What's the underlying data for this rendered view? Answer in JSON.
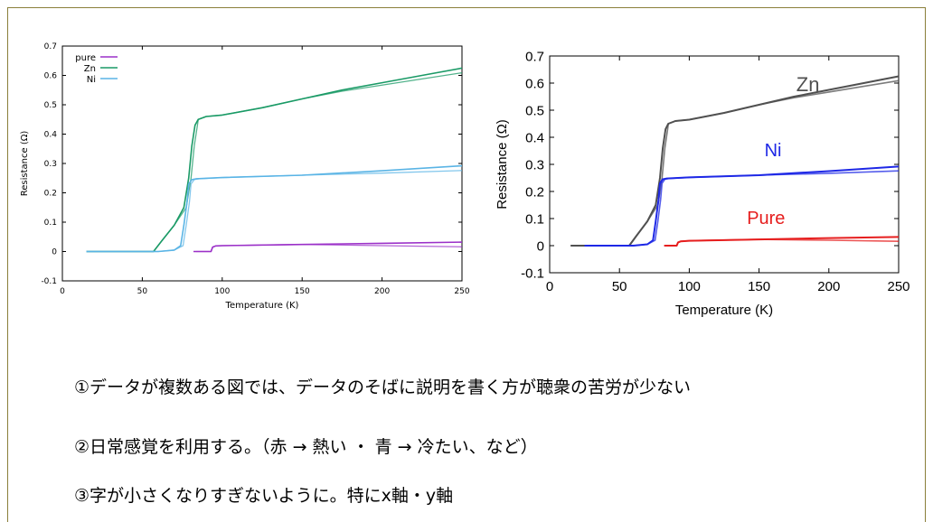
{
  "chart_data": [
    {
      "type": "line",
      "xlabel": "Temperature (K)",
      "ylabel": "Resistance (Ω)",
      "xlim": [
        0,
        250
      ],
      "ylim": [
        -0.1,
        0.7
      ],
      "xticks": [
        "0",
        "50",
        "100",
        "150",
        "200",
        "250"
      ],
      "yticks": [
        "-0.1",
        "0",
        "0.1",
        "0.2",
        "0.3",
        "0.4",
        "0.5",
        "0.6",
        "0.7"
      ],
      "legend_position": "top-left",
      "series": [
        {
          "name": "pure",
          "color": "#9b30c8",
          "x": [
            82,
            93,
            94,
            96,
            100,
            150,
            200,
            250
          ],
          "y": [
            0.0,
            0.0,
            0.015,
            0.019,
            0.02,
            0.024,
            0.028,
            0.032
          ]
        },
        {
          "name": "Zn",
          "color": "#1a9a66",
          "x": [
            15,
            57,
            62,
            70,
            76,
            79,
            81,
            83,
            85,
            90,
            100,
            125,
            150,
            175,
            200,
            225,
            250
          ],
          "y": [
            0.0,
            0.0,
            0.035,
            0.09,
            0.15,
            0.25,
            0.36,
            0.43,
            0.45,
            0.46,
            0.465,
            0.49,
            0.52,
            0.55,
            0.575,
            0.6,
            0.625
          ]
        },
        {
          "name": "Ni",
          "color": "#5ab4e5",
          "x": [
            15,
            60,
            70,
            74,
            76,
            78,
            79,
            81,
            84,
            100,
            150,
            200,
            250
          ],
          "y": [
            0.0,
            0.0,
            0.005,
            0.02,
            0.09,
            0.17,
            0.23,
            0.245,
            0.248,
            0.252,
            0.26,
            0.275,
            0.292
          ]
        }
      ]
    },
    {
      "type": "line",
      "xlabel": "Temperature (K)",
      "ylabel": "Resistance (Ω)",
      "xlim": [
        0,
        250
      ],
      "ylim": [
        -0.1,
        0.7
      ],
      "xticks": [
        "0",
        "50",
        "100",
        "150",
        "200",
        "250"
      ],
      "yticks": [
        "-0.1",
        "0",
        "0.1",
        "0.2",
        "0.3",
        "0.4",
        "0.5",
        "0.6",
        "0.7"
      ],
      "series": [
        {
          "name": "Zn",
          "color": "#505050",
          "x": [
            15,
            57,
            62,
            70,
            76,
            79,
            81,
            83,
            85,
            90,
            100,
            125,
            150,
            175,
            200,
            225,
            250
          ],
          "y": [
            0.0,
            0.0,
            0.035,
            0.09,
            0.15,
            0.25,
            0.36,
            0.43,
            0.45,
            0.46,
            0.465,
            0.49,
            0.52,
            0.55,
            0.575,
            0.6,
            0.625
          ]
        },
        {
          "name": "Ni",
          "color": "#1e28e6",
          "x": [
            25,
            60,
            70,
            74,
            76,
            78,
            79,
            81,
            84,
            100,
            150,
            200,
            250
          ],
          "y": [
            0.0,
            0.0,
            0.005,
            0.02,
            0.09,
            0.17,
            0.23,
            0.245,
            0.248,
            0.252,
            0.26,
            0.275,
            0.292
          ]
        },
        {
          "name": "Pure",
          "color": "#e61e1e",
          "x": [
            82,
            91,
            92,
            94,
            100,
            150,
            200,
            250
          ],
          "y": [
            0.0,
            0.0,
            0.012,
            0.016,
            0.018,
            0.023,
            0.028,
            0.032
          ]
        }
      ]
    }
  ],
  "notes": [
    "①データが複数ある図では、データのそばに説明を書く方が聴衆の苦労が少ない",
    "②日常感覚を利用する。（赤 → 熱い ・ 青 → 冷たい、など）",
    "③字が小さくなりすぎないように。特にx軸・y軸"
  ]
}
